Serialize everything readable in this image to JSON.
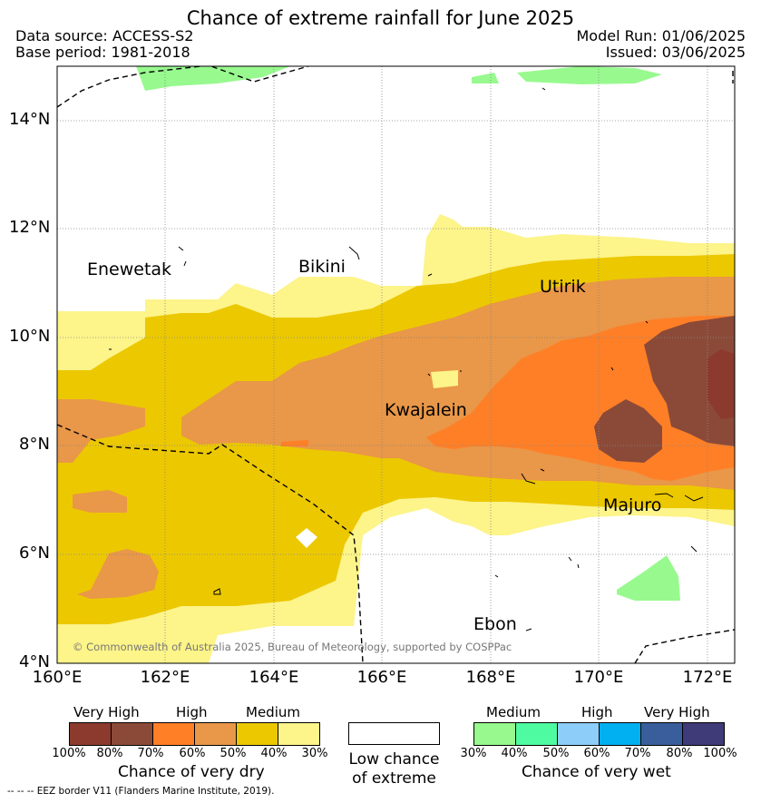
{
  "title": "Chance of extreme rainfall for June 2025",
  "header": {
    "data_source": "Data source: ACCESS-S2",
    "base_period": "Base period: 1981-2018",
    "model_run": "Model Run: 01/06/2025",
    "issued": "Issued: 03/06/2025"
  },
  "map": {
    "lat_labels": [
      "14°N",
      "12°N",
      "10°N",
      "8°N",
      "6°N",
      "4°N"
    ],
    "lon_labels": [
      "160°E",
      "162°E",
      "164°E",
      "166°E",
      "168°E",
      "170°E",
      "172°E"
    ],
    "places": {
      "enewetak": "Enewetak",
      "bikini": "Bikini",
      "utirik": "Utirik",
      "kwajalein": "Kwajalein",
      "majuro": "Majuro",
      "ebon": "Ebon"
    },
    "copyright": "© Commonwealth of Australia 2025, Bureau of Meteorology, supported by COSPPac"
  },
  "legend": {
    "dry": {
      "categories": [
        "Very High",
        "High",
        "Medium"
      ],
      "ticks": [
        "100%",
        "80%",
        "70%",
        "60%",
        "50%",
        "40%",
        "30%"
      ],
      "colors": [
        "#8c3a2e",
        "#8b4a38",
        "#ff7f27",
        "#e99748",
        "#ecc800",
        "#fdf48a"
      ],
      "label": "Chance of very dry"
    },
    "neutral": {
      "label_line1": "Low chance",
      "label_line2": "of extreme",
      "color": "#ffffff"
    },
    "wet": {
      "categories": [
        "Medium",
        "High",
        "Very High"
      ],
      "ticks": [
        "30%",
        "40%",
        "50%",
        "60%",
        "70%",
        "80%",
        "100%"
      ],
      "colors": [
        "#98f98f",
        "#4ffba0",
        "#8dcdfa",
        "#00b0f0",
        "#3a5e9c",
        "#3f3a78"
      ],
      "label": "Chance of very wet"
    },
    "eez_note": "-- -- -- EEZ border V11 (Flanders Marine Institute, 2019)."
  }
}
